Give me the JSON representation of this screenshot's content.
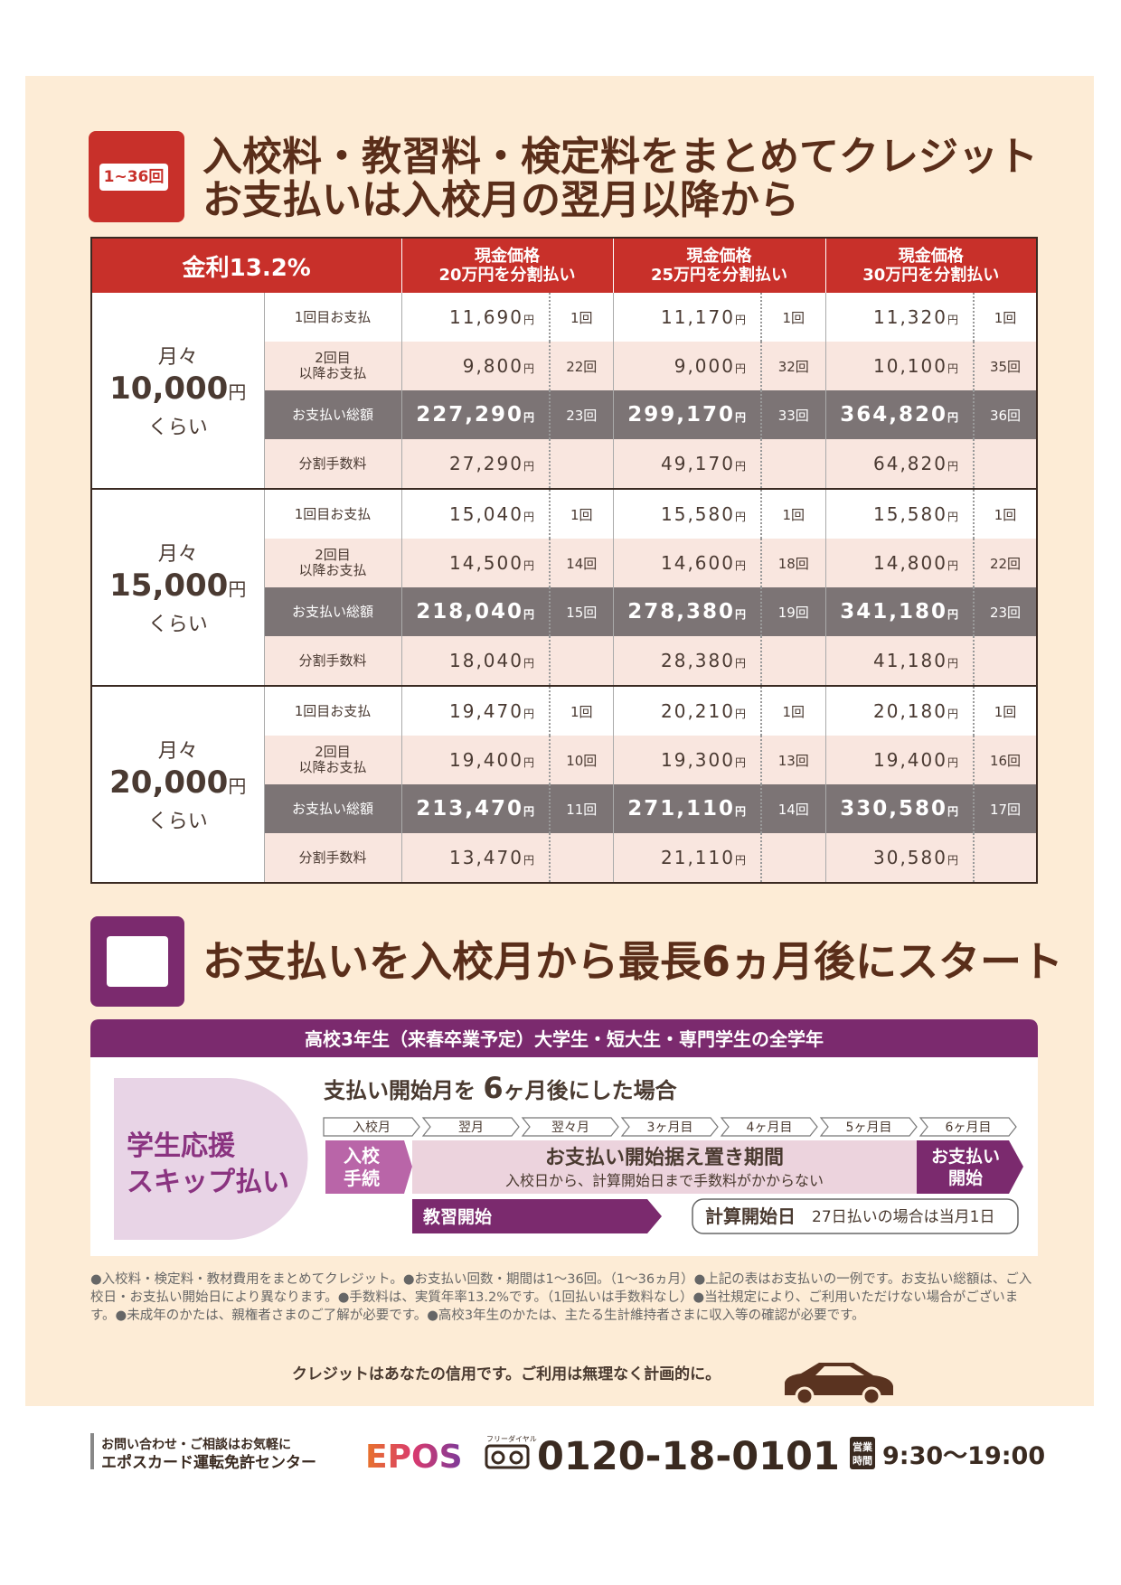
{
  "section1": {
    "icon_label": "1~36回",
    "title_lines": [
      "入校料・教習料・検定料をまとめてクレジット",
      "お支払いは入校月の翌月以降から"
    ],
    "table": {
      "rate": "金利13.2%",
      "currency_unit": "円",
      "columns": [
        [
          "現金価格",
          "20万円を分割払い"
        ],
        [
          "現金価格",
          "25万円を分割払い"
        ],
        [
          "現金価格",
          "30万円を分割払い"
        ]
      ],
      "row_labels": [
        [
          "1回目お支払"
        ],
        [
          "2回目",
          "以降お支払"
        ],
        [
          "お支払い総額"
        ],
        [
          "分割手数料"
        ]
      ],
      "groups": [
        {
          "prefix": "月々",
          "amount": "10,000",
          "suffix": "くらい",
          "rows": [
            [
              {
                "amount": "11,690",
                "count": "1回"
              },
              {
                "amount": "11,170",
                "count": "1回"
              },
              {
                "amount": "11,320",
                "count": "1回"
              }
            ],
            [
              {
                "amount": "9,800",
                "count": "22回"
              },
              {
                "amount": "9,000",
                "count": "32回"
              },
              {
                "amount": "10,100",
                "count": "35回"
              }
            ],
            [
              {
                "amount": "227,290",
                "count": "23回"
              },
              {
                "amount": "299,170",
                "count": "33回"
              },
              {
                "amount": "364,820",
                "count": "36回"
              }
            ],
            [
              {
                "amount": "27,290"
              },
              {
                "amount": "49,170"
              },
              {
                "amount": "64,820"
              }
            ]
          ]
        },
        {
          "prefix": "月々",
          "amount": "15,000",
          "suffix": "くらい",
          "rows": [
            [
              {
                "amount": "15,040",
                "count": "1回"
              },
              {
                "amount": "15,580",
                "count": "1回"
              },
              {
                "amount": "15,580",
                "count": "1回"
              }
            ],
            [
              {
                "amount": "14,500",
                "count": "14回"
              },
              {
                "amount": "14,600",
                "count": "18回"
              },
              {
                "amount": "14,800",
                "count": "22回"
              }
            ],
            [
              {
                "amount": "218,040",
                "count": "15回"
              },
              {
                "amount": "278,380",
                "count": "19回"
              },
              {
                "amount": "341,180",
                "count": "23回"
              }
            ],
            [
              {
                "amount": "18,040"
              },
              {
                "amount": "28,380"
              },
              {
                "amount": "41,180"
              }
            ]
          ]
        },
        {
          "prefix": "月々",
          "amount": "20,000",
          "suffix": "くらい",
          "rows": [
            [
              {
                "amount": "19,470",
                "count": "1回"
              },
              {
                "amount": "20,210",
                "count": "1回"
              },
              {
                "amount": "20,180",
                "count": "1回"
              }
            ],
            [
              {
                "amount": "19,400",
                "count": "10回"
              },
              {
                "amount": "19,300",
                "count": "13回"
              },
              {
                "amount": "19,400",
                "count": "16回"
              }
            ],
            [
              {
                "amount": "213,470",
                "count": "11回"
              },
              {
                "amount": "271,110",
                "count": "14回"
              },
              {
                "amount": "330,580",
                "count": "17回"
              }
            ],
            [
              {
                "amount": "13,470"
              },
              {
                "amount": "21,110"
              },
              {
                "amount": "30,580"
              }
            ]
          ]
        }
      ]
    }
  },
  "section2": {
    "title": "お支払いを入校月から最長6ヵ月後にスタート",
    "banner": "高校3年生（来春卒業予定）大学生・短大生・専門学生の全学年",
    "label_lines": [
      "学生応援",
      "スキップ払い"
    ],
    "subtitle_parts": [
      "支払い開始月を ",
      "6",
      "ヶ月後にした場合"
    ],
    "months": [
      "入校月",
      "翌月",
      "翌々月",
      "3ヶ月目",
      "4ヶ月目",
      "5ヶ月目",
      "6ヶ月目"
    ],
    "start_lines": [
      "入校",
      "手続"
    ],
    "period_title": "お支払い開始据え置き期間",
    "period_note": "入校日から、計算開始日まで手数料がかからない",
    "end_lines": [
      "お支払い",
      "開始"
    ],
    "lesson": "教習開始",
    "calc": "計算開始日",
    "calc_note": "27日払いの場合は当月1日"
  },
  "notes": "●入校料・検定料・教材費用をまとめてクレジット。●お支払い回数・期間は1～36回。（1～36ヵ月）●上記の表はお支払いの一例です。お支払い総額は、ご入校日・お支払い開始日により異なります。●手数料は、実質年率13.2%です。（1回払いは手数料なし）●当社規定により、ご利用いただけない場合がございます。●未成年のかたは、親権者さまのご了解が必要です。●高校3年生のかたは、主たる生計維持者さまに収入等の確認が必要です。",
  "slogan": "クレジットはあなたの信用です。ご利用は無理なく計画的に。",
  "footer": {
    "contact_lines": [
      "お問い合わせ・ご相談はお気軽に",
      "エポスカード運転免許センター"
    ],
    "brand": "EPOS",
    "freedial": "フリーダイヤル",
    "phone": "0120-18-0101",
    "hours_label": [
      "営業",
      "時間"
    ],
    "hours": "9:30～19:00"
  }
}
